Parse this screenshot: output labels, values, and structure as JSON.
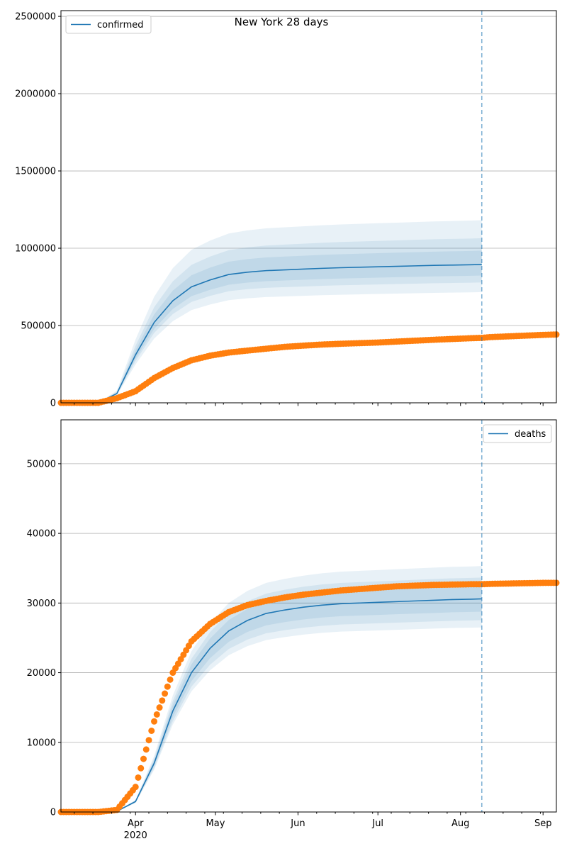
{
  "chart_data": [
    {
      "type": "line",
      "title": "New York 28 days",
      "legend": {
        "label": "confirmed",
        "placement": "top-left"
      },
      "x_start": "2020-03-04",
      "x_end": "2020-09-06",
      "cutoff_date": "2020-08-09",
      "ylim": [
        0,
        2537000
      ],
      "yticks": [
        0,
        500000,
        1000000,
        1500000,
        2000000,
        2500000
      ],
      "ytick_labels": [
        "0",
        "500000",
        "1000000",
        "1500000",
        "2000000",
        "2500000"
      ],
      "grid": true,
      "model_days": [
        0,
        7,
        14,
        21,
        28,
        35,
        42,
        49,
        56,
        63,
        70,
        77,
        84,
        91,
        98,
        105,
        112,
        119,
        126,
        133,
        140,
        147,
        154,
        158
      ],
      "median": [
        0,
        0,
        0,
        60000,
        310000,
        520000,
        660000,
        750000,
        795000,
        830000,
        845000,
        855000,
        860000,
        865000,
        870000,
        874000,
        877000,
        880000,
        883000,
        886000,
        889000,
        891000,
        893000,
        895000
      ],
      "bands": [
        {
          "lower_factor": 0.8,
          "upper_factor": 1.32
        },
        {
          "lower_factor": 0.87,
          "upper_factor": 1.19
        },
        {
          "lower_factor": 0.92,
          "upper_factor": 1.1
        }
      ],
      "observed_days": [
        0,
        7,
        14,
        21,
        28,
        35,
        42,
        49,
        56,
        63,
        70,
        77,
        84,
        91,
        98,
        105,
        112,
        119,
        126,
        133,
        140,
        147,
        154,
        158,
        161,
        168,
        175,
        182,
        186
      ],
      "observed": [
        0,
        0,
        0,
        30000,
        75000,
        160000,
        225000,
        275000,
        305000,
        325000,
        338000,
        350000,
        362000,
        370000,
        377000,
        382000,
        386000,
        390000,
        396000,
        402000,
        408000,
        413000,
        418000,
        420000,
        425000,
        430000,
        435000,
        440000,
        442000
      ]
    },
    {
      "type": "line",
      "legend": {
        "label": "deaths",
        "placement": "top-right"
      },
      "x_start": "2020-03-04",
      "x_end": "2020-09-06",
      "cutoff_date": "2020-08-09",
      "ylim": [
        0,
        56300
      ],
      "yticks": [
        0,
        10000,
        20000,
        30000,
        40000,
        50000
      ],
      "ytick_labels": [
        "0",
        "10000",
        "20000",
        "30000",
        "40000",
        "50000"
      ],
      "xtick_labels": [
        {
          "day": 28,
          "label": "Apr",
          "sub": "2020"
        },
        {
          "day": 58,
          "label": "May"
        },
        {
          "day": 89,
          "label": "Jun"
        },
        {
          "day": 119,
          "label": "Jul"
        },
        {
          "day": 150,
          "label": "Aug"
        },
        {
          "day": 181,
          "label": "Sep"
        }
      ],
      "grid": true,
      "model_days": [
        0,
        7,
        14,
        21,
        28,
        35,
        42,
        49,
        56,
        63,
        70,
        77,
        84,
        91,
        98,
        105,
        112,
        119,
        126,
        133,
        140,
        147,
        154,
        158
      ],
      "median": [
        0,
        0,
        0,
        100,
        1500,
        7000,
        14500,
        20000,
        23500,
        26000,
        27500,
        28500,
        29000,
        29400,
        29700,
        29900,
        30000,
        30100,
        30200,
        30300,
        30400,
        30500,
        30550,
        30600
      ],
      "bands": [
        {
          "lower_factor": 0.866,
          "upper_factor": 1.154
        },
        {
          "lower_factor": 0.9,
          "upper_factor": 1.1
        },
        {
          "lower_factor": 0.94,
          "upper_factor": 1.06
        }
      ],
      "observed_days": [
        0,
        7,
        14,
        21,
        28,
        35,
        42,
        49,
        56,
        63,
        70,
        77,
        84,
        91,
        98,
        105,
        112,
        119,
        126,
        133,
        140,
        147,
        154,
        158,
        161,
        168,
        175,
        182,
        186
      ],
      "observed": [
        0,
        0,
        0,
        300,
        3600,
        13000,
        20000,
        24500,
        27000,
        28700,
        29700,
        30300,
        30800,
        31200,
        31500,
        31800,
        32000,
        32200,
        32400,
        32500,
        32600,
        32650,
        32700,
        32700,
        32750,
        32800,
        32850,
        32900,
        32900
      ]
    }
  ],
  "colors": {
    "model": "#1f77b4",
    "observed": "#ff7f0e",
    "grid": "#b0b0b0"
  }
}
